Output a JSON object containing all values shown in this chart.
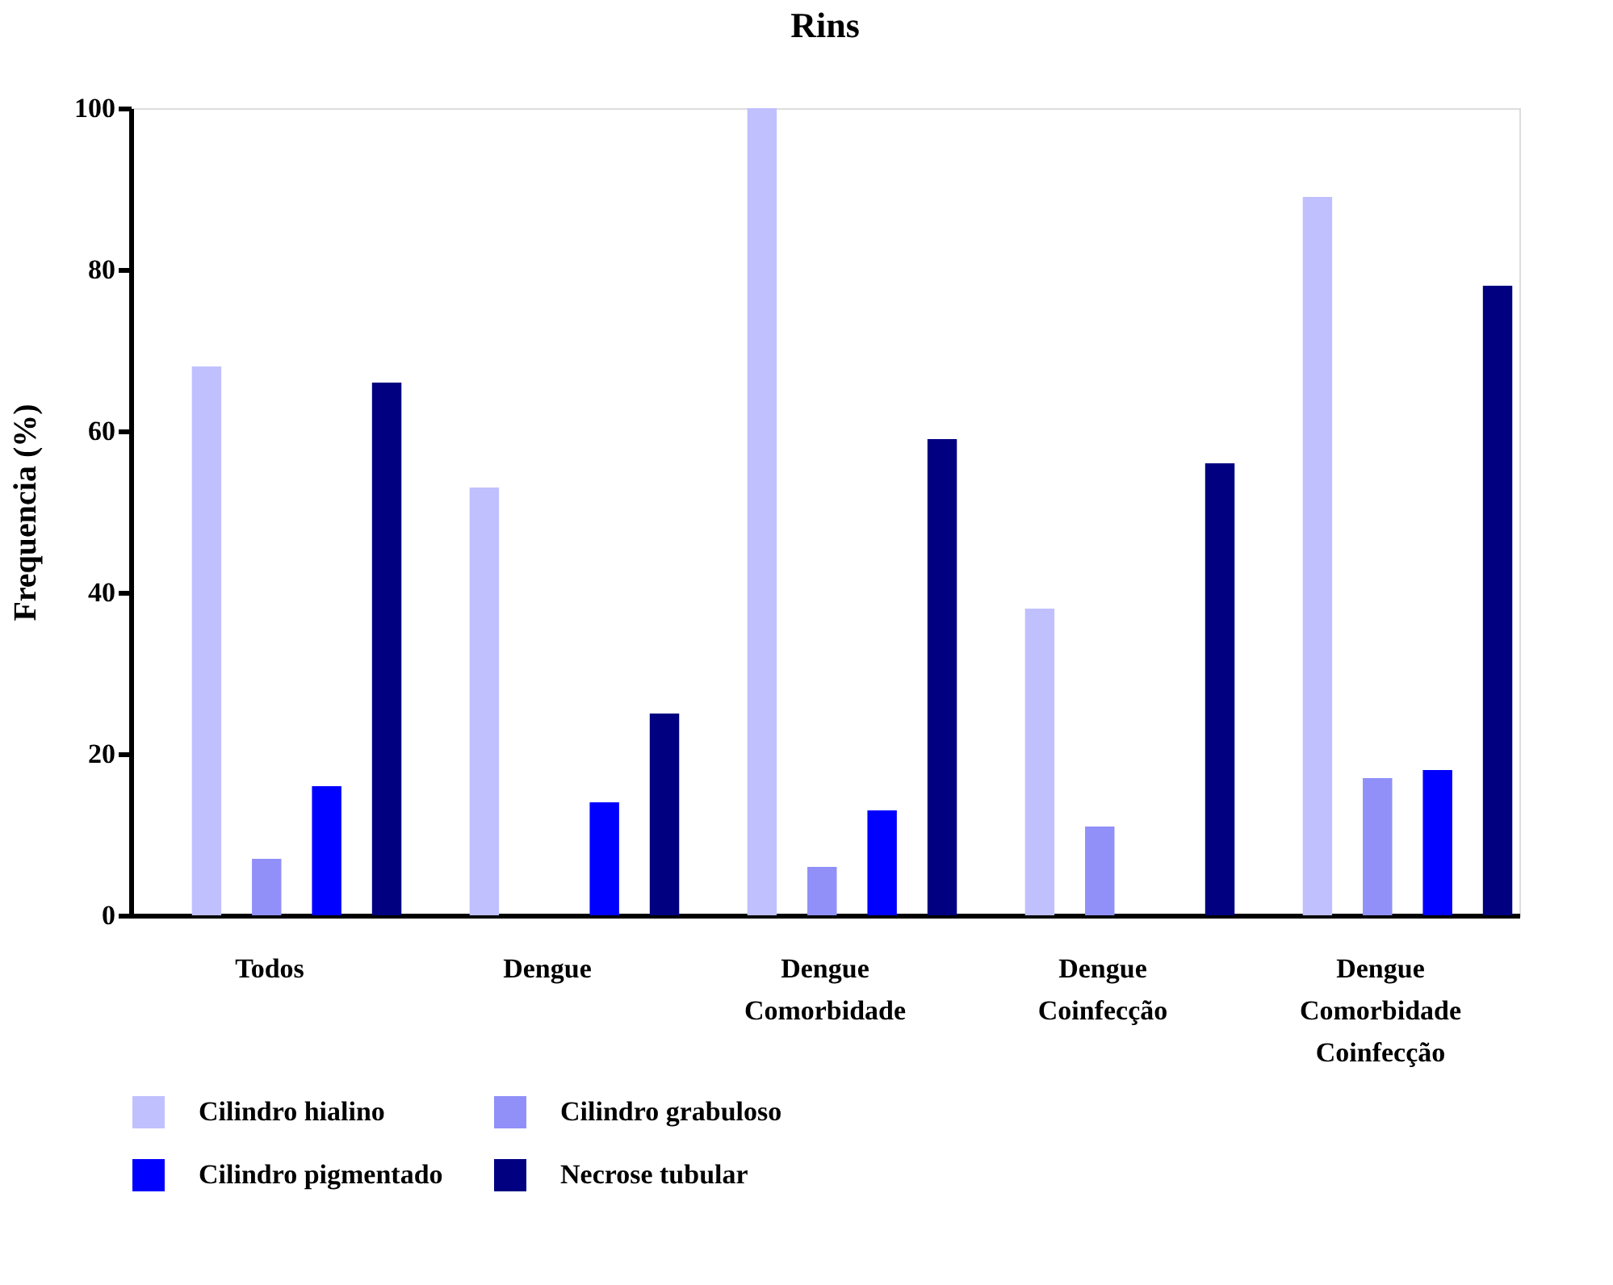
{
  "chart_data": {
    "type": "bar",
    "title": "Rins",
    "ylabel": "Frequencia (%)",
    "categories": [
      "Todos",
      "Dengue",
      "Dengue Comorbidade",
      "Dengue Coinfecção",
      "Dengue Comorbidade Coinfecção"
    ],
    "series": [
      {
        "name": "Cilindro hialino",
        "color": "#c0c0ff",
        "values": [
          68,
          53,
          100,
          38,
          89
        ]
      },
      {
        "name": "Cilindro grabuloso",
        "color": "#9090f8",
        "values": [
          7,
          0,
          6,
          11,
          17
        ]
      },
      {
        "name": "Cilindro pigmentado",
        "color": "#0000ff",
        "values": [
          16,
          14,
          13,
          0,
          18
        ]
      },
      {
        "name": "Necrose tubular",
        "color": "#000080",
        "values": [
          66,
          25,
          59,
          56,
          78
        ]
      }
    ],
    "ylim": [
      0,
      100
    ],
    "yticks": [
      0,
      20,
      40,
      60,
      80,
      100
    ],
    "grid": false,
    "legend": "bottom"
  }
}
